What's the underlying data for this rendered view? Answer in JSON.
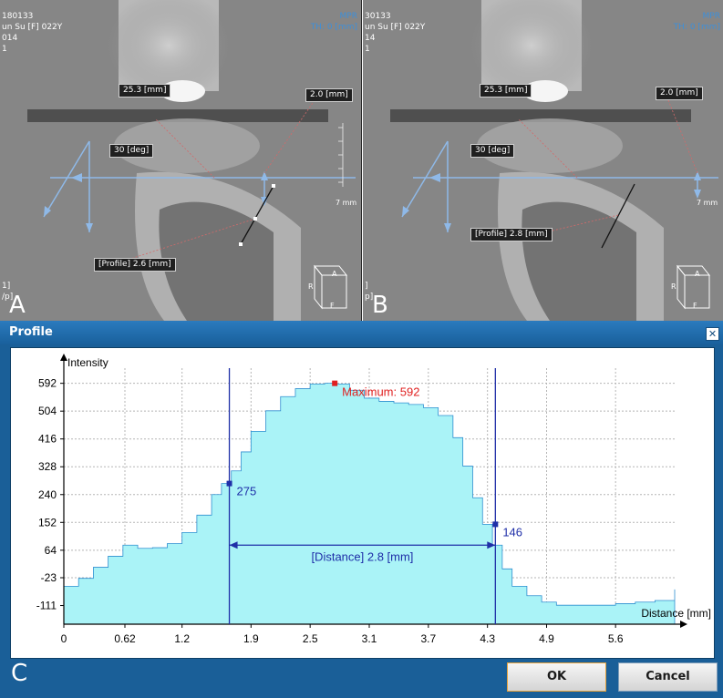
{
  "panels": [
    {
      "letter": "A",
      "overlay_left": [
        "180133",
        "un Su [F] 022Y",
        "014",
        "1"
      ],
      "overlay_right": [
        "MPR",
        "TH: 0 [mm]"
      ],
      "overlay_bottom_left": [
        "1]",
        "/p]"
      ],
      "labels": {
        "length": "25.3 [mm]",
        "width": "2.0 [mm]",
        "angle": "30 [deg]",
        "profile": "[Profile] 2.6 [mm]",
        "scale": "7 mm"
      },
      "cube": {
        "top": "A",
        "left": "R",
        "bottom": "F"
      }
    },
    {
      "letter": "B",
      "overlay_left": [
        "30133",
        "un Su [F] 022Y",
        "14",
        "1"
      ],
      "overlay_right": [
        "MPR",
        "TH: 0 [mm]"
      ],
      "overlay_bottom_left": [
        "]",
        "p]"
      ],
      "labels": {
        "length": "25.3 [mm]",
        "width": "2.0 [mm]",
        "angle": "30 [deg]",
        "profile": "[Profile] 2.8 [mm]",
        "scale": "7 mm"
      },
      "cube": {
        "top": "A",
        "left": "R",
        "bottom": "F"
      }
    }
  ],
  "dialog": {
    "title": "Profile",
    "close_glyph": "✕",
    "letter": "C",
    "ok_label": "OK",
    "cancel_label": "Cancel"
  },
  "chart_data": {
    "type": "area",
    "ylabel": "Intensity",
    "xlabel": "Distance [mm]",
    "x_ticks": [
      "0",
      "0.62",
      "1.2",
      "1.9",
      "2.5",
      "3.1",
      "3.7",
      "4.3",
      "4.9",
      "5.6"
    ],
    "y_ticks": [
      "592",
      "504",
      "416",
      "328",
      "240",
      "152",
      "64",
      "-23",
      "-111"
    ],
    "xlim": [
      0,
      6.2
    ],
    "ylim": [
      -170,
      640
    ],
    "grid": true,
    "fill_color": "#aaf3f7",
    "line_color": "#2f8fd0",
    "x": [
      0,
      0.15,
      0.3,
      0.45,
      0.6,
      0.75,
      0.9,
      1.05,
      1.2,
      1.35,
      1.5,
      1.6,
      1.7,
      1.8,
      1.9,
      2.05,
      2.2,
      2.35,
      2.5,
      2.65,
      2.75,
      2.9,
      3.05,
      3.2,
      3.35,
      3.5,
      3.65,
      3.8,
      3.95,
      4.05,
      4.15,
      4.25,
      4.35,
      4.45,
      4.55,
      4.7,
      4.85,
      5.0,
      5.2,
      5.4,
      5.6,
      5.8,
      6.0,
      6.2
    ],
    "y": [
      -50,
      -25,
      10,
      45,
      80,
      70,
      72,
      85,
      120,
      175,
      240,
      275,
      315,
      375,
      440,
      505,
      550,
      575,
      590,
      592,
      590,
      570,
      545,
      535,
      530,
      525,
      515,
      490,
      420,
      330,
      230,
      146,
      80,
      5,
      -50,
      -80,
      -100,
      -110,
      -110,
      -110,
      -105,
      -100,
      -95,
      -60
    ],
    "markers": [
      {
        "label": "275",
        "x": 1.68,
        "y": 275
      },
      {
        "label": "146",
        "x": 4.38,
        "y": 146
      }
    ],
    "maximum": {
      "label": "Maximum: 592",
      "x": 2.75,
      "y": 592
    },
    "distance": {
      "label": "[Distance] 2.8 [mm]",
      "x1": 1.68,
      "x2": 4.38,
      "y": 80
    }
  }
}
